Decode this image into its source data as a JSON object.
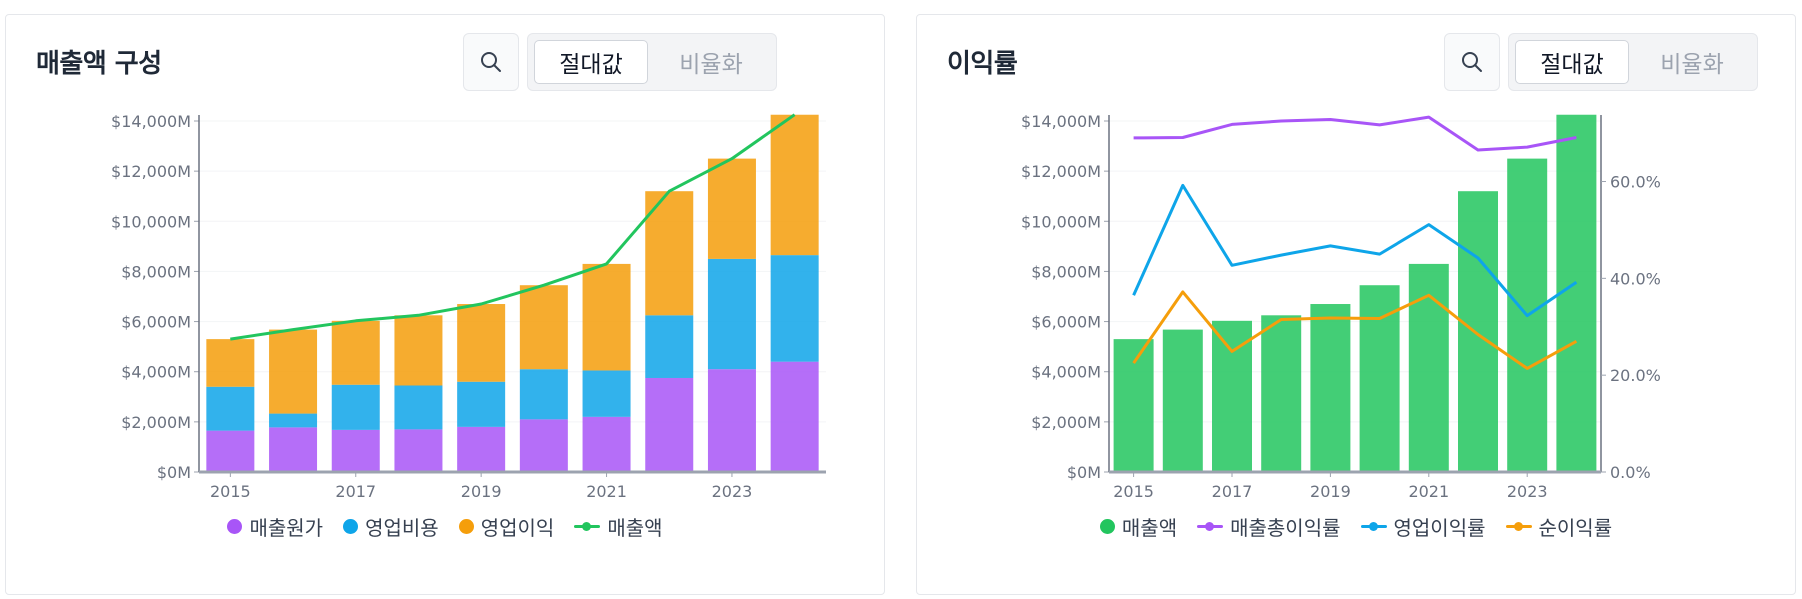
{
  "panels": [
    {
      "title": "매출액 구성",
      "toggle": {
        "active": "절대값",
        "inactive": "비율화"
      },
      "legend": [
        {
          "label": "매출원가",
          "color": "#a855f7",
          "kind": "dot"
        },
        {
          "label": "영업비용",
          "color": "#0ea5e9",
          "kind": "dot"
        },
        {
          "label": "영업이익",
          "color": "#f59e0b",
          "kind": "dot"
        },
        {
          "label": "매출액",
          "color": "#22c55e",
          "kind": "line"
        }
      ]
    },
    {
      "title": "이익률",
      "toggle": {
        "active": "절대값",
        "inactive": "비율화"
      },
      "legend": [
        {
          "label": "매출액",
          "color": "#22c55e",
          "kind": "dot"
        },
        {
          "label": "매출총이익률",
          "color": "#a855f7",
          "kind": "line"
        },
        {
          "label": "영업이익률",
          "color": "#0ea5e9",
          "kind": "line"
        },
        {
          "label": "순이익률",
          "color": "#f59e0b",
          "kind": "line"
        }
      ]
    }
  ],
  "chart_data": [
    {
      "type": "bar",
      "stacked": true,
      "title": "매출액 구성",
      "categories": [
        "2015",
        "2016",
        "2017",
        "2018",
        "2019",
        "2020",
        "2021",
        "2022",
        "2023",
        "2024"
      ],
      "x_tick_labels": [
        "2015",
        "2017",
        "2019",
        "2021",
        "2023"
      ],
      "y_tick_labels": [
        "$0M",
        "$2,000M",
        "$4,000M",
        "$6,000M",
        "$8,000M",
        "$10,000M",
        "$12,000M",
        "$14,000M"
      ],
      "ylim": [
        0,
        14000
      ],
      "y_ticks": [
        0,
        2000,
        4000,
        6000,
        8000,
        10000,
        12000,
        14000
      ],
      "series": [
        {
          "name": "매출원가",
          "type": "bar",
          "color": "#a855f7",
          "values": [
            1650,
            1780,
            1680,
            1700,
            1800,
            2100,
            2200,
            3750,
            4100,
            4400
          ]
        },
        {
          "name": "영업비용",
          "type": "bar",
          "color": "#0ea5e9",
          "values": [
            1750,
            550,
            1800,
            1750,
            1800,
            2000,
            1850,
            2500,
            4400,
            4250
          ]
        },
        {
          "name": "영업이익",
          "type": "bar",
          "color": "#f59e0b",
          "values": [
            1900,
            3350,
            2550,
            2800,
            3100,
            3350,
            4250,
            4950,
            4000,
            5600
          ]
        },
        {
          "name": "매출액",
          "type": "line",
          "color": "#22c55e",
          "values": [
            5300,
            5680,
            6030,
            6250,
            6700,
            7450,
            8300,
            11200,
            12500,
            14250
          ]
        }
      ]
    },
    {
      "type": "bar",
      "title": "이익률",
      "categories": [
        "2015",
        "2016",
        "2017",
        "2018",
        "2019",
        "2020",
        "2021",
        "2022",
        "2023",
        "2024"
      ],
      "x_tick_labels": [
        "2015",
        "2017",
        "2019",
        "2021",
        "2023"
      ],
      "y_tick_labels": [
        "$0M",
        "$2,000M",
        "$4,000M",
        "$6,000M",
        "$8,000M",
        "$10,000M",
        "$12,000M",
        "$14,000M"
      ],
      "y2_tick_labels": [
        "0.0%",
        "20.0%",
        "40.0%",
        "60.0%"
      ],
      "ylim": [
        0,
        14000
      ],
      "y_ticks": [
        0,
        2000,
        4000,
        6000,
        8000,
        10000,
        12000,
        14000
      ],
      "y2lim": [
        0,
        72.5
      ],
      "y2_ticks": [
        0,
        20,
        40,
        60
      ],
      "series": [
        {
          "name": "매출액",
          "type": "bar",
          "axis": "left",
          "color": "#22c55e",
          "values": [
            5300,
            5680,
            6030,
            6250,
            6700,
            7450,
            8300,
            11200,
            12500,
            14250
          ]
        },
        {
          "name": "매출총이익률",
          "type": "line",
          "axis": "right",
          "color": "#a855f7",
          "values": [
            69,
            69.1,
            71.8,
            72.5,
            72.8,
            71.7,
            73.3,
            66.5,
            67.1,
            69.1
          ]
        },
        {
          "name": "영업이익률",
          "type": "line",
          "axis": "right",
          "color": "#0ea5e9",
          "values": [
            36.5,
            59.2,
            42.7,
            44.8,
            46.7,
            45,
            51.1,
            44.2,
            32.3,
            39.2
          ]
        },
        {
          "name": "순이익률",
          "type": "line",
          "axis": "right",
          "color": "#f59e0b",
          "values": [
            22.5,
            37.2,
            24.9,
            31.5,
            31.8,
            31.7,
            36.5,
            28.4,
            21.4,
            27
          ]
        }
      ]
    }
  ]
}
